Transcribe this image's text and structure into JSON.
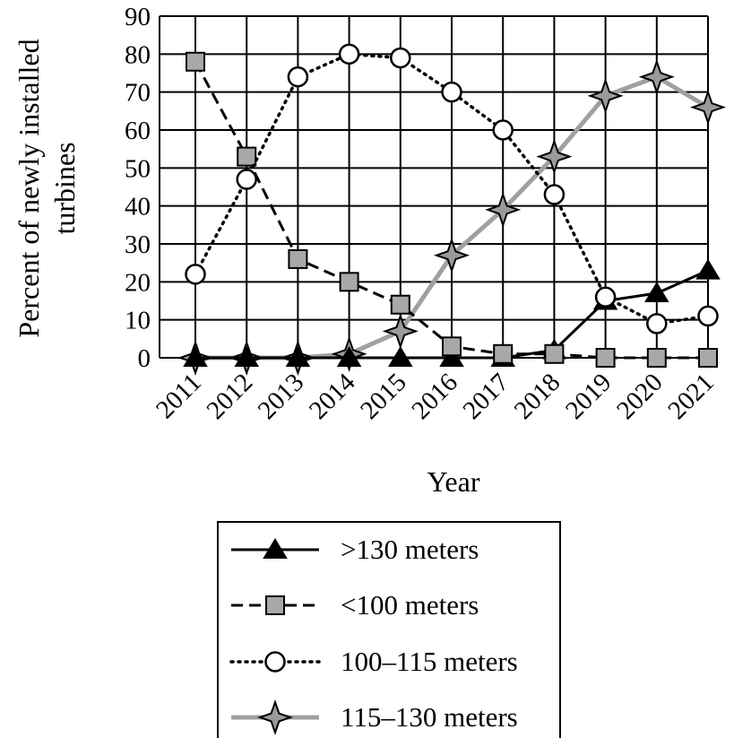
{
  "chart_data": {
    "type": "line",
    "title": "",
    "xlabel": "Year",
    "ylabel_lines": [
      "Percent of newly installed",
      "turbines"
    ],
    "x": [
      "2011",
      "2012",
      "2013",
      "2014",
      "2015",
      "2016",
      "2017",
      "2018",
      "2019",
      "2020",
      "2021"
    ],
    "ylim": [
      0,
      90
    ],
    "yticks": [
      0,
      10,
      20,
      30,
      40,
      50,
      60,
      70,
      80,
      90
    ],
    "grid": true,
    "legend_position": "bottom-center",
    "series": [
      {
        "name": ">130 meters",
        "marker": "triangle",
        "line": "solid",
        "color": "#000000",
        "values": [
          0,
          0,
          0,
          0,
          0,
          0,
          0,
          2,
          15,
          17,
          23
        ]
      },
      {
        "name": "<100 meters",
        "marker": "square",
        "line": "dashed",
        "color": "#000000",
        "values": [
          78,
          53,
          26,
          20,
          14,
          3,
          1,
          1,
          0,
          0,
          0
        ]
      },
      {
        "name": "100–115 meters",
        "marker": "circle",
        "line": "dotted",
        "color": "#000000",
        "values": [
          22,
          47,
          74,
          80,
          79,
          70,
          60,
          43,
          16,
          9,
          11
        ]
      },
      {
        "name": "115–130 meters",
        "marker": "star",
        "line": "solid",
        "color": "#a0a0a0",
        "values": [
          0,
          0,
          0,
          1,
          7,
          27,
          39,
          53,
          69,
          74,
          66
        ]
      }
    ]
  }
}
